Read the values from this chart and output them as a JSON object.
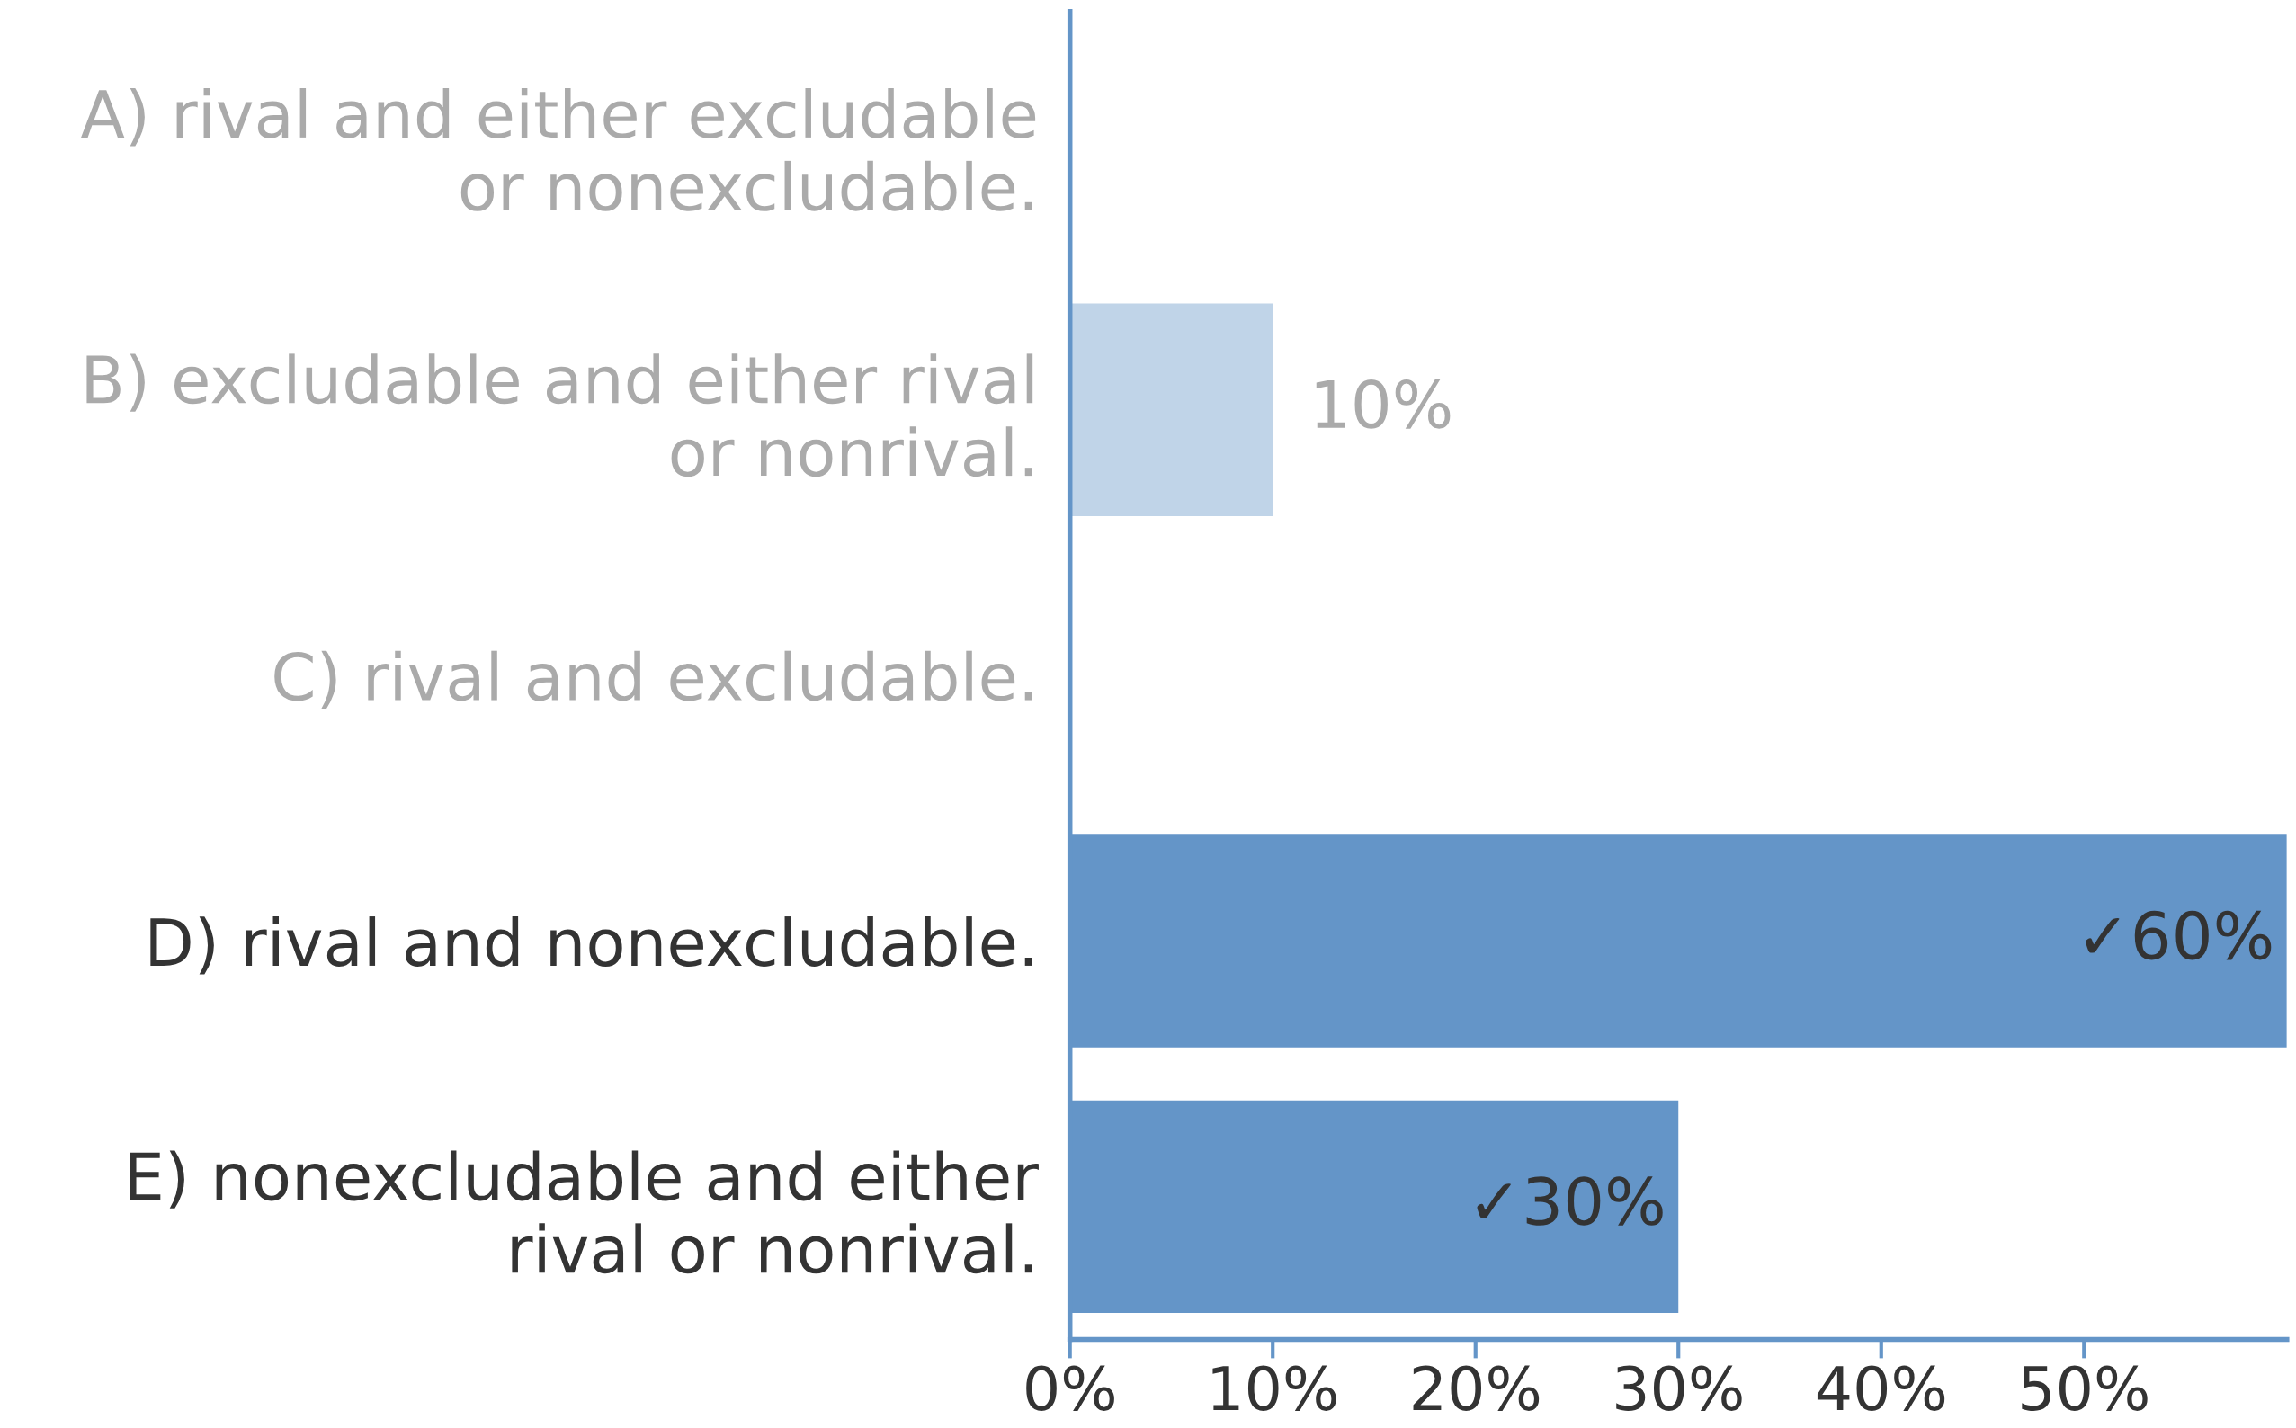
{
  "chart_data": {
    "type": "bar",
    "orientation": "horizontal",
    "categories": [
      "A) rival and either excludable\nor nonexcludable.",
      "B) excludable and either rival\nor nonrival.",
      "C) rival and excludable.",
      "D) rival and nonexcludable.",
      "E) nonexcludable and either\nrival or nonrival."
    ],
    "values": [
      0,
      10,
      0,
      60,
      30
    ],
    "colors": [
      "#c0d4e8",
      "#c0d4e8",
      "#c0d4e8",
      "#6495c8",
      "#6495c8"
    ],
    "value_labels": [
      null,
      "10%",
      null,
      "✓60%",
      "✓30%"
    ],
    "xlim": [
      0,
      60
    ],
    "xticks": [
      {
        "value": 0,
        "label": "0%"
      },
      {
        "value": 10,
        "label": "10%"
      },
      {
        "value": 20,
        "label": "20%"
      },
      {
        "value": 30,
        "label": "30%"
      },
      {
        "value": 40,
        "label": "40%"
      },
      {
        "value": 50,
        "label": "50%"
      }
    ],
    "grid": false,
    "legend": false
  }
}
